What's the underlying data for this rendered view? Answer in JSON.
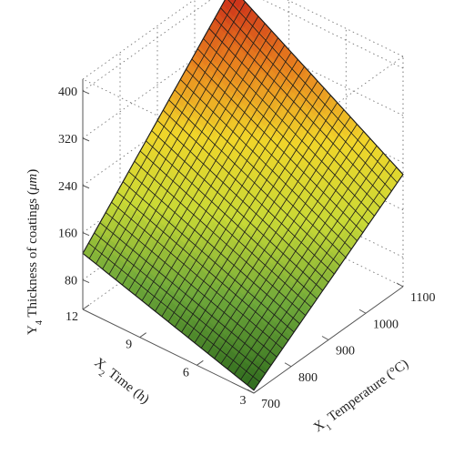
{
  "chart_data": {
    "type": "surface",
    "x": {
      "label_prefix": "X",
      "label_sub": "1",
      "label_text": " Temperature (°C)",
      "ticks": [
        "700",
        "800",
        "900",
        "1000",
        "1100"
      ],
      "range": [
        700,
        1100
      ]
    },
    "y": {
      "label_prefix": "X",
      "label_sub": "2",
      "label_text": " Time (h)",
      "ticks": [
        "3",
        "6",
        "9",
        "12"
      ],
      "range": [
        3,
        12
      ]
    },
    "z": {
      "label_prefix": "Y",
      "label_sub": "4",
      "label_text": " Thickness of coatings (",
      "label_unit": "μm",
      "label_end": ")",
      "ticks": [
        "80",
        "160",
        "240",
        "320",
        "400"
      ],
      "range": [
        30,
        420
      ]
    },
    "surface_corners": {
      "x700_y3": 35,
      "x1100_y3": 220,
      "x700_y12": 125,
      "x1100_y12": 395
    },
    "grid": "dotted box",
    "colormap": [
      "#2f6a1e",
      "#6fa83a",
      "#c9d936",
      "#f0d52a",
      "#e8801e",
      "#c9261a"
    ]
  }
}
